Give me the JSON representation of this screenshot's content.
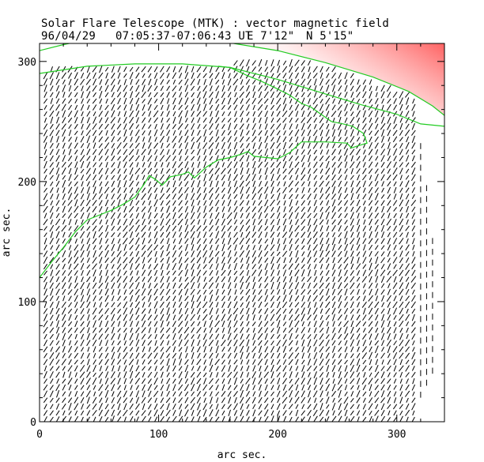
{
  "chart_data": {
    "type": "vector field",
    "title": "Solar Flare Telescope (MTK) : vector magnetic field",
    "subtitle": {
      "date": "96/04/29",
      "time_range": "07:05:37-07:06:43 UT",
      "longitude": "E 7'12\"",
      "latitude": "N 5'15\""
    },
    "xlabel": "arc sec.",
    "ylabel": "arc sec.",
    "xlim": [
      0,
      340
    ],
    "ylim": [
      0,
      315
    ],
    "x_ticks": [
      0,
      100,
      200,
      300
    ],
    "y_ticks": [
      0,
      100,
      200,
      300
    ],
    "x_tick_labels": [
      "0",
      "100",
      "200",
      "300"
    ],
    "y_tick_labels": [
      "0",
      "100",
      "200",
      "300"
    ],
    "vector_grid": {
      "x_start": 5,
      "x_end": 330,
      "x_step": 5.15,
      "y_start": 2,
      "y_end": 300,
      "y_step": 5.3,
      "direction_deg": 62,
      "typical_length_arcsec": 5.5,
      "right_edge_tail_x": [
        320,
        325,
        330
      ],
      "color": "#000000"
    },
    "contours": [
      {
        "name": "limb-contour",
        "color": "#22cc22",
        "points": [
          [
            0,
            290
          ],
          [
            40,
            296
          ],
          [
            80,
            298
          ],
          [
            120,
            298
          ],
          [
            160,
            295
          ],
          [
            200,
            285
          ],
          [
            240,
            273
          ],
          [
            270,
            264
          ],
          [
            300,
            256
          ],
          [
            320,
            248
          ],
          [
            340,
            246
          ]
        ]
      },
      {
        "name": "limb-contour-upper",
        "color": "#22cc22",
        "points": [
          [
            0,
            309
          ],
          [
            20,
            314
          ],
          [
            40,
            318
          ]
        ]
      },
      {
        "name": "limb-contour-right",
        "color": "#22cc22",
        "points": [
          [
            163,
            315
          ],
          [
            200,
            309
          ],
          [
            240,
            299
          ],
          [
            280,
            287
          ],
          [
            310,
            275
          ],
          [
            330,
            263
          ],
          [
            340,
            255
          ]
        ]
      },
      {
        "name": "neutral-line",
        "color": "#22cc22",
        "points": [
          [
            0,
            120
          ],
          [
            10,
            133
          ],
          [
            20,
            145
          ],
          [
            30,
            158
          ],
          [
            40,
            168
          ],
          [
            60,
            176
          ],
          [
            70,
            181
          ],
          [
            80,
            187
          ],
          [
            88,
            198
          ],
          [
            92,
            205
          ],
          [
            97,
            202
          ],
          [
            103,
            197
          ],
          [
            110,
            204
          ],
          [
            120,
            206
          ],
          [
            125,
            208
          ],
          [
            130,
            203
          ],
          [
            140,
            212
          ],
          [
            150,
            218
          ],
          [
            160,
            220
          ],
          [
            170,
            223
          ],
          [
            175,
            225
          ],
          [
            180,
            221
          ],
          [
            200,
            219
          ],
          [
            210,
            224
          ],
          [
            220,
            233
          ],
          [
            240,
            233
          ],
          [
            258,
            232
          ],
          [
            262,
            228
          ],
          [
            268,
            230
          ],
          [
            275,
            232
          ],
          [
            272,
            240
          ],
          [
            263,
            246
          ],
          [
            255,
            248
          ],
          [
            245,
            250
          ],
          [
            235,
            257
          ],
          [
            228,
            262
          ],
          [
            220,
            265
          ],
          [
            210,
            272
          ],
          [
            198,
            278
          ],
          [
            185,
            284
          ],
          [
            175,
            288
          ],
          [
            160,
            295
          ],
          [
            150,
            296
          ]
        ]
      }
    ],
    "outside_disk_color": "#ff5a5a",
    "outside_disk_fade_color": "#ffe8e8",
    "background": "#ffffff"
  }
}
